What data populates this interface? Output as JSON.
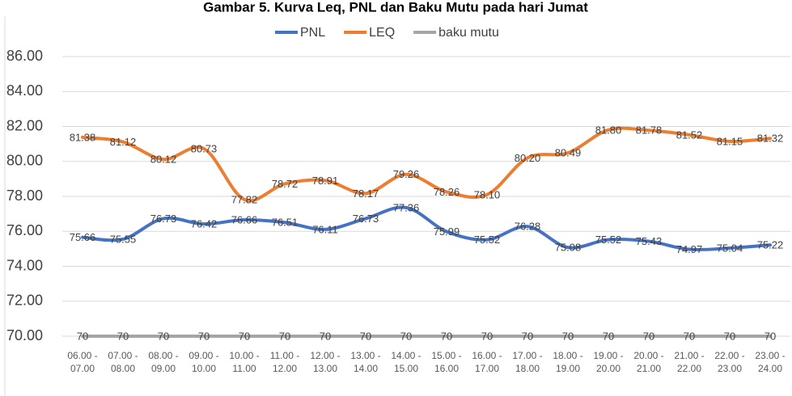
{
  "chart_data": {
    "type": "line",
    "title": "Gambar 5. Kurva Leq, PNL dan Baku Mutu pada hari Jumat",
    "categories": [
      "06.00 - 07.00",
      "07.00 - 08.00",
      "08.00 - 09.00",
      "09.00 - 10.00",
      "10.00 - 11.00",
      "11.00 - 12.00",
      "12.00 - 13.00",
      "13.00 - 14.00",
      "14.00 - 15.00",
      "15.00 - 16.00",
      "16.00 - 17.00",
      "17.00 - 18.00",
      "18.00 - 19.00",
      "19.00 - 20.00",
      "20.00 - 21.00",
      "21.00 - 22.00",
      "22.00 - 23.00",
      "23.00 - 24.00"
    ],
    "series": [
      {
        "name": "PNL",
        "color": "#4472c4",
        "values": [
          75.66,
          75.55,
          76.73,
          76.42,
          76.66,
          76.51,
          76.11,
          76.73,
          77.36,
          75.99,
          75.52,
          76.28,
          75.08,
          75.52,
          75.43,
          74.97,
          75.04,
          75.22
        ],
        "value_labels": [
          "75.66",
          "75.55",
          "76.73",
          "76.42",
          "76.66",
          "76.51",
          "76.11",
          "76.73",
          "77.36",
          "75.99",
          "75.52",
          "76.28",
          "75.08",
          "75.52",
          "75.43",
          "74.97",
          "75.04",
          "75.22"
        ]
      },
      {
        "name": "LEQ",
        "color": "#ed7d31",
        "values": [
          81.38,
          81.12,
          80.12,
          80.73,
          77.82,
          78.72,
          78.91,
          78.17,
          79.26,
          78.26,
          78.1,
          80.2,
          80.49,
          81.8,
          81.78,
          81.52,
          81.15,
          81.32
        ],
        "value_labels": [
          "81.38",
          "81.12",
          "80.12",
          "80.73",
          "77.82",
          "78.72",
          "78.91",
          "78.17",
          "79.26",
          "78.26",
          "78.10",
          "80.20",
          "80.49",
          "81.80",
          "81.78",
          "81.52",
          "81.15",
          "81.32"
        ]
      },
      {
        "name": "baku mutu",
        "color": "#a5a5a5",
        "values": [
          70,
          70,
          70,
          70,
          70,
          70,
          70,
          70,
          70,
          70,
          70,
          70,
          70,
          70,
          70,
          70,
          70,
          70
        ]
      }
    ],
    "ylim": [
      70,
      87
    ],
    "yticks": [
      {
        "value": 70,
        "label": "70.00"
      },
      {
        "value": 72,
        "label": "72.00"
      },
      {
        "value": 74,
        "label": "74.00"
      },
      {
        "value": 76,
        "label": "76.00"
      },
      {
        "value": 78,
        "label": "78.00"
      },
      {
        "value": 80,
        "label": "80.00"
      },
      {
        "value": 82,
        "label": "82.00"
      },
      {
        "value": 84,
        "label": "84.00"
      },
      {
        "value": 86,
        "label": "86.00"
      }
    ],
    "grid": true,
    "legend": "top"
  }
}
